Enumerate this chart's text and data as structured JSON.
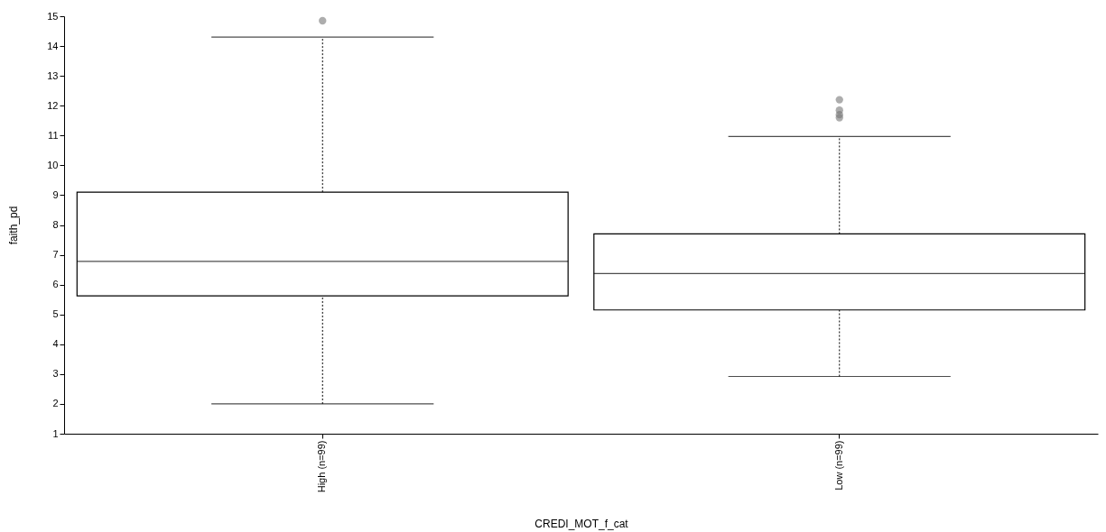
{
  "chart_data": {
    "type": "box",
    "xlabel": "CREDI_MOT_f_cat",
    "ylabel": "faith_pd",
    "categories": [
      "High (n=99)",
      "Low (n=99)"
    ],
    "boxes": [
      {
        "low": 2.0,
        "q1": 5.62,
        "median": 6.78,
        "q3": 9.1,
        "high": 14.3,
        "outliers": [
          14.85
        ]
      },
      {
        "low": 2.92,
        "q1": 5.15,
        "median": 6.37,
        "q3": 7.7,
        "high": 10.97,
        "outliers": [
          12.2,
          11.85,
          11.7,
          11.6
        ]
      }
    ],
    "ylim": [
      1,
      15
    ],
    "yticks": [
      1,
      2,
      3,
      4,
      5,
      6,
      7,
      8,
      9,
      10,
      11,
      12,
      13,
      14,
      15
    ]
  }
}
